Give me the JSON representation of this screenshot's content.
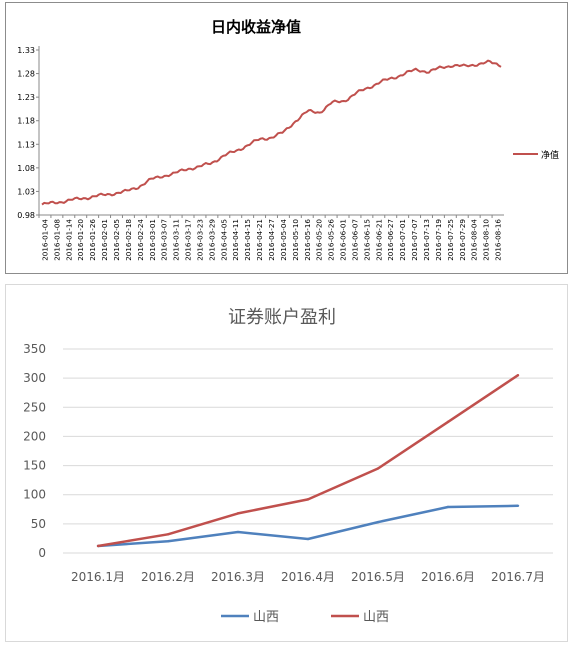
{
  "chart_data": [
    {
      "type": "line",
      "title": "日内收益净值",
      "x_tick_labels": [
        "2016-01-04",
        "2016-01-08",
        "2016-01-14",
        "2016-01-20",
        "2016-01-26",
        "2016-02-01",
        "2016-02-05",
        "2016-02-18",
        "2016-02-24",
        "2016-03-01",
        "2016-03-07",
        "2016-03-11",
        "2016-03-17",
        "2016-03-23",
        "2016-03-29",
        "2016-04-05",
        "2016-04-11",
        "2016-04-15",
        "2016-04-21",
        "2016-04-27",
        "2016-05-04",
        "2016-05-10",
        "2016-05-16",
        "2016-05-20",
        "2016-05-26",
        "2016-06-01",
        "2016-06-07",
        "2016-06-15",
        "2016-06-21",
        "2016-06-27",
        "2016-07-01",
        "2016-07-07",
        "2016-07-13",
        "2016-07-19",
        "2016-07-25",
        "2016-07-29",
        "2016-08-04",
        "2016-08-10",
        "2016-08-16"
      ],
      "y_ticks": [
        "0.98",
        "1.03",
        "1.08",
        "1.13",
        "1.18",
        "1.23",
        "1.28",
        "1.33"
      ],
      "ylim": [
        0.98,
        1.33
      ],
      "legend_position": "right",
      "series": [
        {
          "name": "净值",
          "color": "#c0504d",
          "values": [
            1.002,
            1.006,
            1.01,
            1.014,
            1.018,
            1.022,
            1.026,
            1.03,
            1.04,
            1.055,
            1.063,
            1.068,
            1.078,
            1.082,
            1.09,
            1.105,
            1.115,
            1.128,
            1.14,
            1.145,
            1.155,
            1.18,
            1.2,
            1.198,
            1.218,
            1.222,
            1.238,
            1.25,
            1.262,
            1.27,
            1.28,
            1.288,
            1.284,
            1.292,
            1.298,
            1.295,
            1.3,
            1.304,
            1.298
          ]
        }
      ]
    },
    {
      "type": "line",
      "title": "证券账户盈利",
      "categories": [
        "2016.1月",
        "2016.2月",
        "2016.3月",
        "2016.4月",
        "2016.5月",
        "2016.6月",
        "2016.7月"
      ],
      "y_ticks": [
        "0",
        "50",
        "100",
        "150",
        "200",
        "250",
        "300",
        "350"
      ],
      "ylim": [
        0,
        350
      ],
      "grid": true,
      "legend_position": "bottom",
      "series": [
        {
          "name": "山西",
          "color": "#4f81bd",
          "values": [
            12,
            20,
            36,
            24,
            53,
            79,
            81
          ]
        },
        {
          "name": "山西",
          "color": "#c0504d",
          "values": [
            12,
            32,
            68,
            92,
            145,
            225,
            305
          ]
        }
      ]
    }
  ]
}
